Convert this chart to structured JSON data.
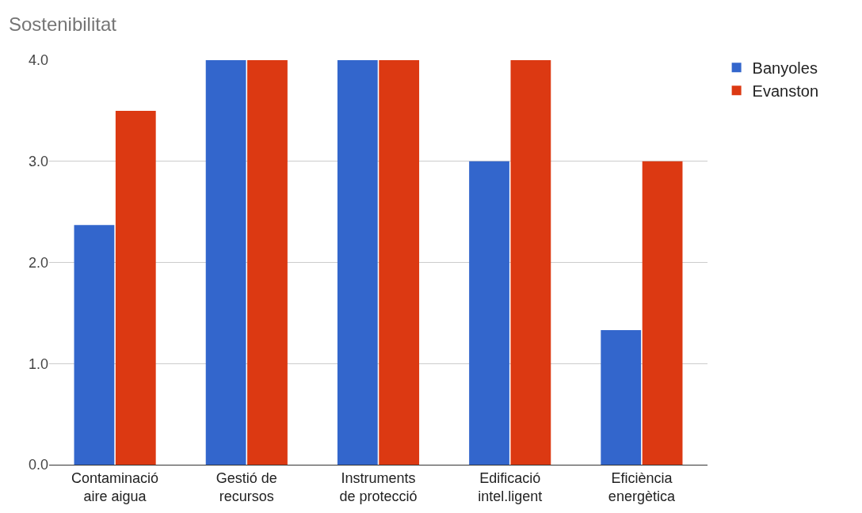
{
  "chart_data": {
    "type": "bar",
    "title": "Sostenibilitat",
    "categories": [
      "Contaminació\naire aigua",
      "Gestió de\nrecursos",
      "Instruments\nde protecció",
      "Edificació\nintel.ligent",
      "Eficiència\nenergètica"
    ],
    "series": [
      {
        "name": "Banyoles",
        "color": "#3366cc",
        "values": [
          2.37,
          4,
          4,
          3,
          1.33
        ]
      },
      {
        "name": "Evanston",
        "color": "#dc3912",
        "values": [
          3.5,
          4,
          4,
          4,
          3
        ]
      }
    ],
    "ylim": [
      0,
      4
    ],
    "yticks": [
      {
        "value": 0,
        "label": "0.0"
      },
      {
        "value": 1,
        "label": "1.0"
      },
      {
        "value": 2,
        "label": "2.0"
      },
      {
        "value": 3,
        "label": "3.0"
      },
      {
        "value": 4,
        "label": "4.0"
      }
    ],
    "grid": "y",
    "legend": "top right"
  }
}
